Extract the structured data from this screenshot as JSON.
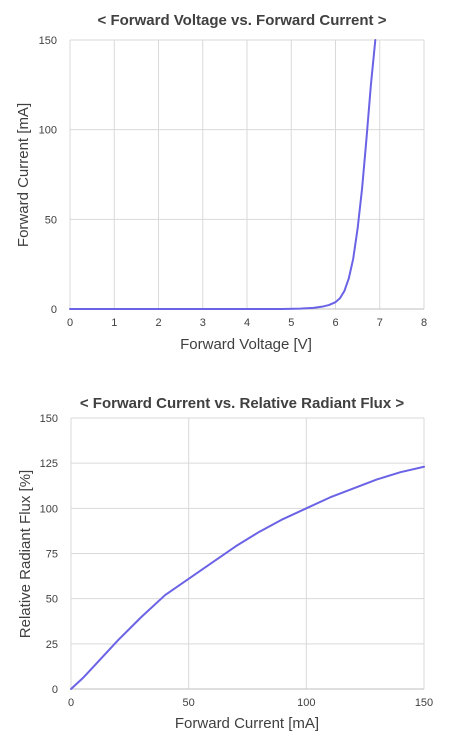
{
  "chart_data": [
    {
      "type": "line",
      "title": "< Forward Voltage vs. Forward Current >",
      "xlabel": "Forward Voltage [V]",
      "ylabel": "Forward Current [mA]",
      "xlim": [
        0,
        8
      ],
      "ylim": [
        0,
        150
      ],
      "xticks": [
        0,
        1,
        2,
        3,
        4,
        5,
        6,
        7,
        8
      ],
      "yticks": [
        0,
        50,
        100,
        150
      ],
      "grid": true,
      "color": "#6b63e6",
      "series": [
        {
          "x": [
            0,
            1,
            2,
            3,
            4,
            4.8,
            5.2,
            5.5,
            5.7,
            5.85,
            6.0,
            6.1,
            6.2,
            6.3,
            6.4,
            6.5,
            6.6,
            6.7,
            6.8,
            6.9
          ],
          "y": [
            0,
            0,
            0,
            0,
            0,
            0,
            0.2,
            0.6,
            1.3,
            2.2,
            3.8,
            6,
            10,
            17,
            28,
            45,
            67,
            95,
            125,
            150
          ]
        }
      ]
    },
    {
      "type": "line",
      "title": "< Forward Current vs. Relative Radiant Flux >",
      "xlabel": "Forward Current [mA]",
      "ylabel": "Relative Radiant Flux [%]",
      "xlim": [
        0,
        150
      ],
      "ylim": [
        0,
        150
      ],
      "xticks": [
        0,
        50,
        100,
        150
      ],
      "yticks": [
        0,
        25,
        50,
        75,
        100,
        125,
        150
      ],
      "grid": true,
      "color": "#6b63e6",
      "series": [
        {
          "x": [
            0,
            5,
            10,
            20,
            30,
            40,
            50,
            60,
            70,
            80,
            90,
            100,
            110,
            120,
            130,
            140,
            150
          ],
          "y": [
            0,
            6,
            13,
            27,
            40,
            52,
            61,
            70,
            79,
            87,
            94,
            100,
            106,
            111,
            116,
            120,
            123
          ]
        }
      ]
    }
  ]
}
